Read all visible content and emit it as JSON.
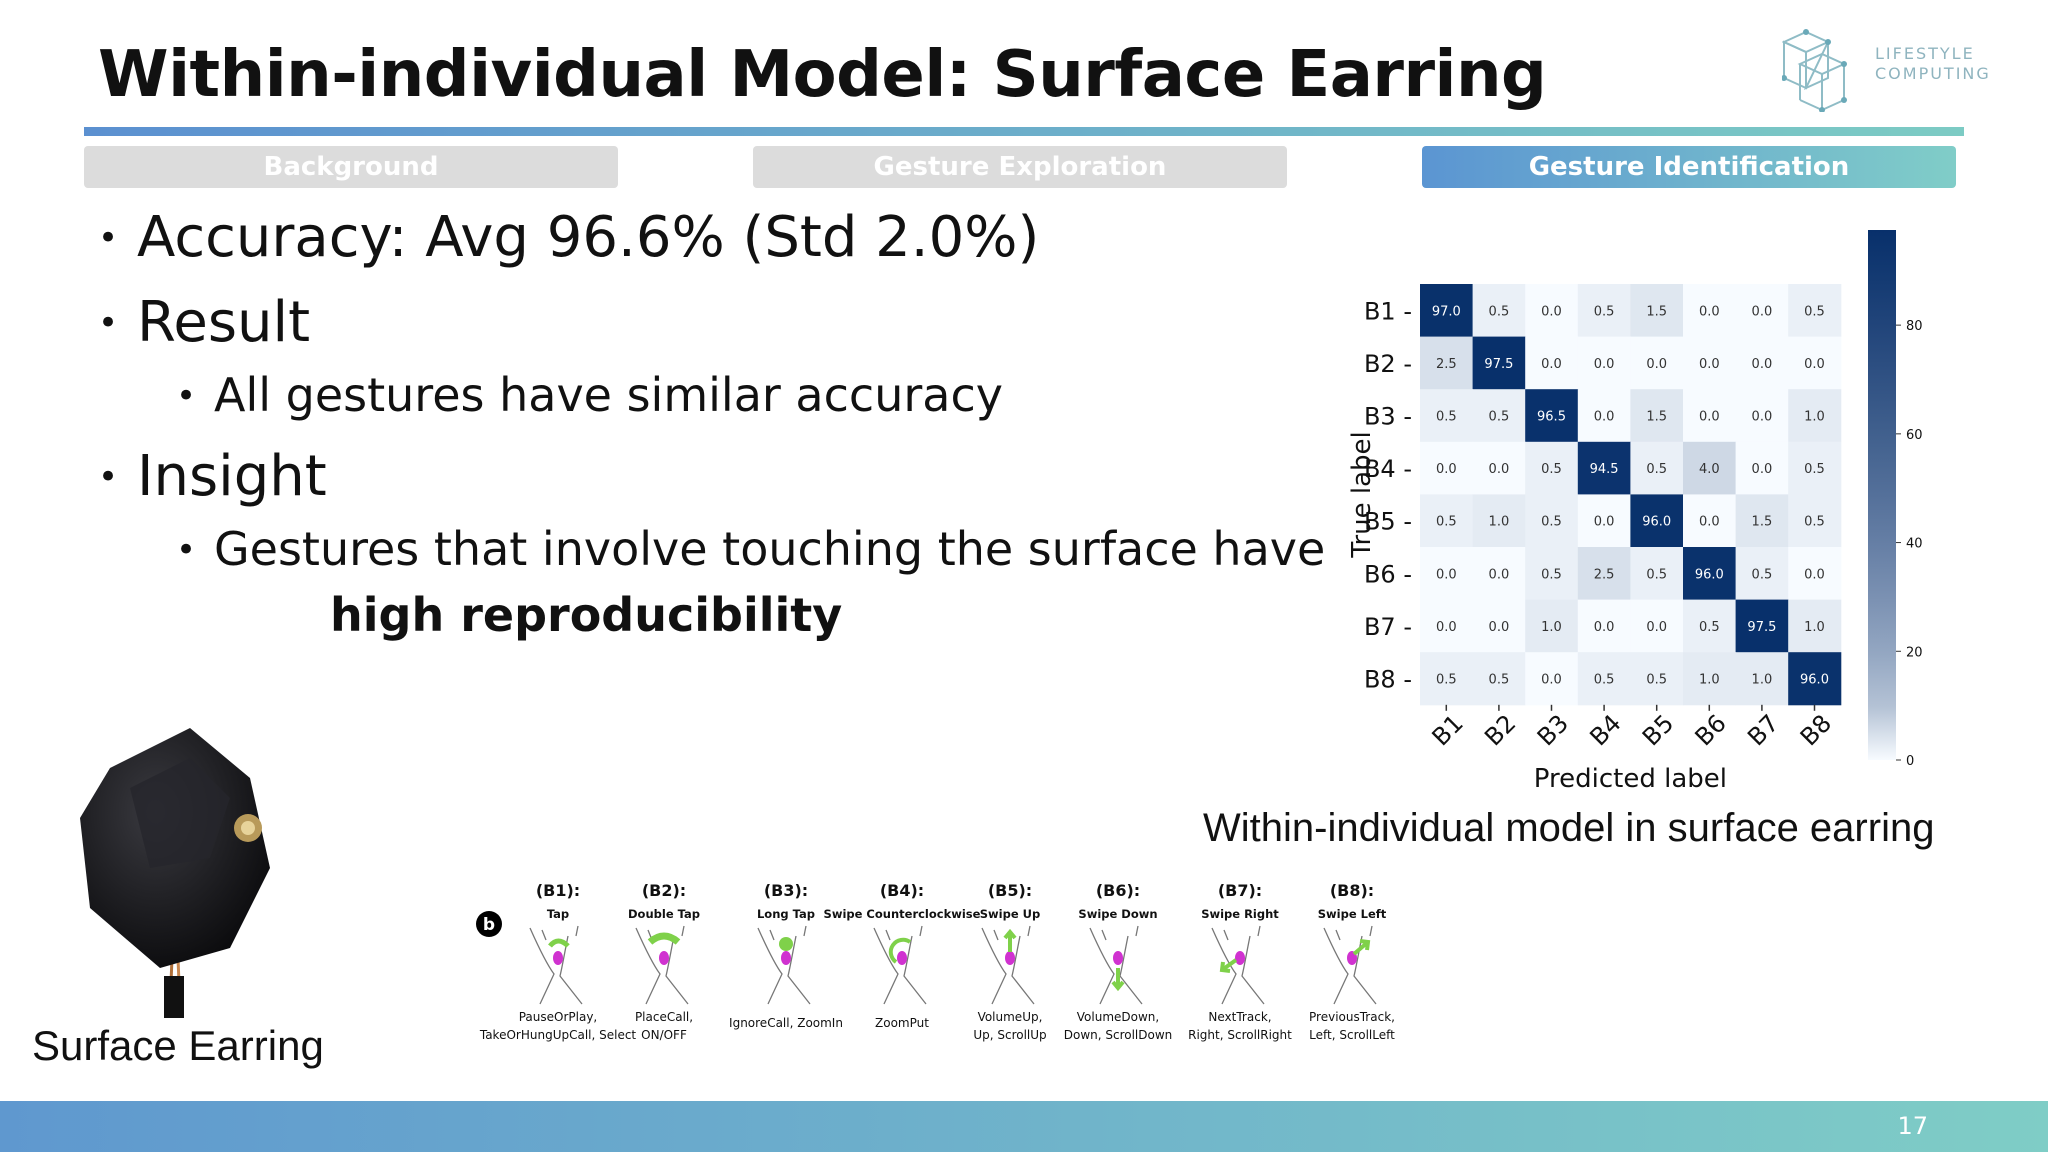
{
  "title": "Within-individual Model: Surface Earring",
  "logo": {
    "line1": "LIFESTYLE",
    "line2": "COMPUTING"
  },
  "tabs": [
    {
      "label": "Background",
      "active": false
    },
    {
      "label": "Gesture Exploration",
      "active": false
    },
    {
      "label": "Gesture Identification",
      "active": true
    }
  ],
  "bullets": {
    "accuracy": "Accuracy: Avg 96.6% (Std 2.0%)",
    "result": "Result",
    "result_sub": "All gestures have similar accuracy",
    "insight": "Insight",
    "insight_sub_line1": "Gestures that involve touching the surface have",
    "insight_sub_line2": "high reproducibility"
  },
  "chart_data": {
    "type": "heatmap",
    "row_labels": [
      "B1",
      "B2",
      "B3",
      "B4",
      "B5",
      "B6",
      "B7",
      "B8"
    ],
    "col_labels": [
      "B1",
      "B2",
      "B3",
      "B4",
      "B5",
      "B6",
      "B7",
      "B8"
    ],
    "ylabel": "True label",
    "xlabel": "Predicted label",
    "values": [
      [
        97.0,
        0.5,
        0.0,
        0.5,
        1.5,
        0.0,
        0.0,
        0.5
      ],
      [
        2.5,
        97.5,
        0.0,
        0.0,
        0.0,
        0.0,
        0.0,
        0.0
      ],
      [
        0.5,
        0.5,
        96.5,
        0.0,
        1.5,
        0.0,
        0.0,
        1.0
      ],
      [
        0.0,
        0.0,
        0.5,
        94.5,
        0.5,
        4.0,
        0.0,
        0.5
      ],
      [
        0.5,
        1.0,
        0.5,
        0.0,
        96.0,
        0.0,
        1.5,
        0.5
      ],
      [
        0.0,
        0.0,
        0.5,
        2.5,
        0.5,
        96.0,
        0.5,
        0.0
      ],
      [
        0.0,
        0.0,
        1.0,
        0.0,
        0.0,
        0.5,
        97.5,
        1.0
      ],
      [
        0.5,
        0.5,
        0.0,
        0.5,
        0.5,
        1.0,
        1.0,
        96.0
      ]
    ],
    "colorbar_ticks": [
      0,
      20,
      40,
      60,
      80
    ],
    "colorbar_range": [
      0,
      97.5
    ],
    "colors": {
      "low": "#f7fbff",
      "high": "#08306b"
    }
  },
  "chart_caption": "Within-individual model in surface earring",
  "device_caption": "Surface Earring",
  "gesture_panel": {
    "marker": "b",
    "items": [
      {
        "code": "(B1):",
        "name": "Tap",
        "mapping": "PauseOrPlay,\nTakeOrHungUpCall, Select"
      },
      {
        "code": "(B2):",
        "name": "Double Tap",
        "mapping": "PlaceCall,\nON/OFF"
      },
      {
        "code": "(B3):",
        "name": "Long Tap",
        "mapping": "IgnoreCall, ZoomIn"
      },
      {
        "code": "(B4):",
        "name": "Swipe Counterclockwise",
        "mapping": "ZoomPut"
      },
      {
        "code": "(B5):",
        "name": "Swipe Up",
        "mapping": "VolumeUp,\nUp, ScrollUp"
      },
      {
        "code": "(B6):",
        "name": "Swipe Down",
        "mapping": "VolumeDown,\nDown, ScrollDown"
      },
      {
        "code": "(B7):",
        "name": "Swipe Right",
        "mapping": "NextTrack,\nRight, ScrollRight"
      },
      {
        "code": "(B8):",
        "name": "Swipe Left",
        "mapping": "PreviousTrack,\nLeft, ScrollLeft"
      }
    ]
  },
  "page_number": "17"
}
